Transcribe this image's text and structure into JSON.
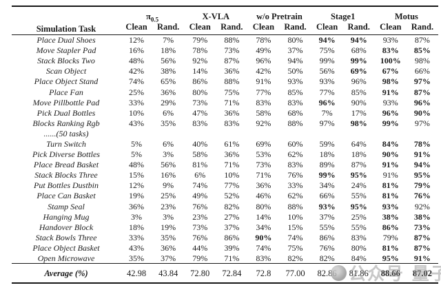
{
  "table": {
    "task_header": "Simulation Task",
    "groups": [
      {
        "name": "π",
        "sub": "0.5"
      },
      {
        "name": "X-VLA",
        "sub": ""
      },
      {
        "name": "w/o Pretrain",
        "sub": ""
      },
      {
        "name": "Stage1",
        "sub": ""
      },
      {
        "name": "Motus",
        "sub": ""
      }
    ],
    "subcols": [
      "Clean",
      "Rand."
    ],
    "rows": [
      {
        "task": "Place Dual Shoes",
        "values": [
          "12%",
          "7%",
          "79%",
          "88%",
          "78%",
          "80%",
          "94%",
          "94%",
          "93%",
          "87%"
        ],
        "bold": [
          6,
          7
        ]
      },
      {
        "task": "Move Stapler Pad",
        "values": [
          "16%",
          "18%",
          "78%",
          "73%",
          "49%",
          "37%",
          "75%",
          "68%",
          "83%",
          "85%"
        ],
        "bold": [
          8,
          9
        ]
      },
      {
        "task": "Stack Blocks Two",
        "values": [
          "48%",
          "56%",
          "92%",
          "87%",
          "96%",
          "94%",
          "99%",
          "99%",
          "100%",
          "98%"
        ],
        "bold": [
          7,
          8
        ]
      },
      {
        "task": "Scan Object",
        "values": [
          "42%",
          "38%",
          "14%",
          "36%",
          "42%",
          "50%",
          "56%",
          "69%",
          "67%",
          "66%"
        ],
        "bold": [
          7,
          8
        ]
      },
      {
        "task": "Place Object Stand",
        "values": [
          "74%",
          "65%",
          "86%",
          "88%",
          "91%",
          "93%",
          "93%",
          "96%",
          "98%",
          "97%"
        ],
        "bold": [
          8,
          9
        ]
      },
      {
        "task": "Place Fan",
        "values": [
          "25%",
          "36%",
          "80%",
          "75%",
          "77%",
          "85%",
          "77%",
          "85%",
          "91%",
          "87%"
        ],
        "bold": [
          8,
          9
        ]
      },
      {
        "task": "Move Pillbottle Pad",
        "values": [
          "33%",
          "29%",
          "73%",
          "71%",
          "83%",
          "83%",
          "96%",
          "90%",
          "93%",
          "96%"
        ],
        "bold": [
          6,
          9
        ]
      },
      {
        "task": "Pick Dual Bottles",
        "values": [
          "10%",
          "6%",
          "47%",
          "36%",
          "58%",
          "68%",
          "7%",
          "17%",
          "96%",
          "90%"
        ],
        "bold": [
          8,
          9
        ]
      },
      {
        "task": "Blocks Ranking Rgb",
        "values": [
          "43%",
          "35%",
          "83%",
          "83%",
          "92%",
          "88%",
          "97%",
          "98%",
          "99%",
          "97%"
        ],
        "bold": [
          7,
          8
        ]
      },
      {
        "task": "......(50 tasks)",
        "values": [],
        "bold": []
      },
      {
        "task": "Turn Switch",
        "values": [
          "5%",
          "6%",
          "40%",
          "61%",
          "69%",
          "60%",
          "59%",
          "64%",
          "84%",
          "78%"
        ],
        "bold": [
          8,
          9
        ]
      },
      {
        "task": "Pick Diverse Bottles",
        "values": [
          "5%",
          "3%",
          "58%",
          "36%",
          "53%",
          "62%",
          "18%",
          "18%",
          "90%",
          "91%"
        ],
        "bold": [
          8,
          9
        ]
      },
      {
        "task": "Place Bread Basket",
        "values": [
          "48%",
          "56%",
          "81%",
          "71%",
          "73%",
          "83%",
          "89%",
          "87%",
          "91%",
          "94%"
        ],
        "bold": [
          8,
          9
        ]
      },
      {
        "task": "Stack Blocks Three",
        "values": [
          "15%",
          "16%",
          "6%",
          "10%",
          "71%",
          "76%",
          "99%",
          "95%",
          "91%",
          "95%"
        ],
        "bold": [
          6,
          7,
          9
        ]
      },
      {
        "task": "Put Bottles Dustbin",
        "values": [
          "12%",
          "9%",
          "74%",
          "77%",
          "36%",
          "33%",
          "34%",
          "24%",
          "81%",
          "79%"
        ],
        "bold": [
          8,
          9
        ]
      },
      {
        "task": "Place Can Basket",
        "values": [
          "19%",
          "25%",
          "49%",
          "52%",
          "46%",
          "62%",
          "66%",
          "55%",
          "81%",
          "76%"
        ],
        "bold": [
          8,
          9
        ]
      },
      {
        "task": "Stamp Seal",
        "values": [
          "36%",
          "23%",
          "76%",
          "82%",
          "80%",
          "88%",
          "93%",
          "95%",
          "93%",
          "92%"
        ],
        "bold": [
          6,
          7,
          8
        ]
      },
      {
        "task": "Hanging Mug",
        "values": [
          "3%",
          "3%",
          "23%",
          "27%",
          "14%",
          "10%",
          "37%",
          "25%",
          "38%",
          "38%"
        ],
        "bold": [
          8,
          9
        ]
      },
      {
        "task": "Handover Block",
        "values": [
          "18%",
          "19%",
          "73%",
          "37%",
          "34%",
          "15%",
          "55%",
          "55%",
          "86%",
          "73%"
        ],
        "bold": [
          8,
          9
        ]
      },
      {
        "task": "Stack Bowls Three",
        "values": [
          "33%",
          "35%",
          "76%",
          "86%",
          "90%",
          "74%",
          "86%",
          "83%",
          "79%",
          "87%"
        ],
        "bold": [
          4,
          9
        ]
      },
      {
        "task": "Place Object Basket",
        "values": [
          "43%",
          "36%",
          "44%",
          "39%",
          "74%",
          "75%",
          "76%",
          "80%",
          "81%",
          "87%"
        ],
        "bold": [
          8,
          9
        ]
      },
      {
        "task": "Open Microwave",
        "values": [
          "35%",
          "37%",
          "79%",
          "71%",
          "83%",
          "82%",
          "82%",
          "84%",
          "95%",
          "91%"
        ],
        "bold": [
          8,
          9
        ]
      }
    ],
    "average": {
      "label": "Average (%)",
      "values": [
        "42.98",
        "43.84",
        "72.80",
        "72.84",
        "72.8",
        "77.00",
        "82.86",
        "81.86",
        "88.66",
        "87.02"
      ],
      "bold": [
        8,
        9
      ]
    }
  },
  "watermark": {
    "icon": "qbitai-logo-circle",
    "text": "公众号 量子位"
  }
}
